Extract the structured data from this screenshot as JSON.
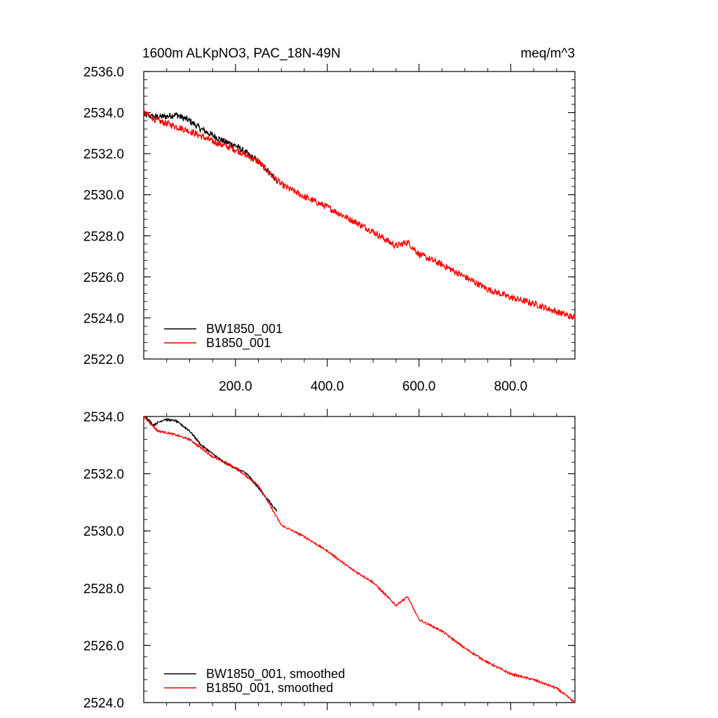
{
  "header": {
    "title": "1600m ALKpNO3, PAC_18N-49N",
    "units": "meq/m^3"
  },
  "colors": {
    "bw": "#000000",
    "b": "#ff0000",
    "axis": "#000000"
  },
  "chart_data": [
    {
      "type": "line",
      "title": "1600m ALKpNO3, PAC_18N-49N",
      "units": "meq/m^3",
      "xlim": [
        0,
        940
      ],
      "ylim": [
        2522.0,
        2536.0
      ],
      "x_ticks": [
        200,
        400,
        600,
        800
      ],
      "x_tick_labels": [
        "200.0",
        "400.0",
        "600.0",
        "800.0"
      ],
      "y_ticks": [
        2522,
        2524,
        2526,
        2528,
        2530,
        2532,
        2534,
        2536
      ],
      "y_tick_labels": [
        "2522.0",
        "2524.0",
        "2526.0",
        "2528.0",
        "2530.0",
        "2532.0",
        "2534.0",
        "2536.0"
      ],
      "legend": {
        "position": "bottom-left"
      },
      "noise": 0.32,
      "series": [
        {
          "name": "BW1850_001",
          "color": "#000000",
          "x": [
            0,
            20,
            45,
            70,
            100,
            125,
            150,
            175,
            200,
            225,
            250,
            270,
            285,
            290
          ],
          "y": [
            2533.9,
            2533.8,
            2533.8,
            2533.9,
            2533.6,
            2533.2,
            2532.9,
            2532.6,
            2532.4,
            2532.0,
            2531.6,
            2531.2,
            2530.8,
            2530.7
          ]
        },
        {
          "name": "B1850_001",
          "color": "#ff0000",
          "x": [
            0,
            30,
            60,
            100,
            150,
            200,
            250,
            300,
            350,
            400,
            450,
            500,
            550,
            575,
            600,
            650,
            700,
            750,
            800,
            850,
            900,
            940
          ],
          "y": [
            2534.0,
            2533.6,
            2533.4,
            2533.1,
            2532.6,
            2532.2,
            2531.6,
            2530.5,
            2529.9,
            2529.4,
            2528.8,
            2528.2,
            2527.5,
            2527.7,
            2527.1,
            2526.6,
            2526.0,
            2525.4,
            2525.0,
            2524.7,
            2524.3,
            2524.0
          ]
        }
      ]
    },
    {
      "type": "line",
      "title": "",
      "xlim": [
        0,
        940
      ],
      "ylim": [
        2524.0,
        2534.0
      ],
      "x_ticks": [
        200,
        400,
        600,
        800
      ],
      "x_tick_labels": [],
      "y_ticks": [
        2524,
        2526,
        2528,
        2530,
        2532,
        2534
      ],
      "y_tick_labels": [
        "2524.0",
        "2526.0",
        "2528.0",
        "2530.0",
        "2532.0",
        "2534.0"
      ],
      "legend": {
        "position": "bottom-left"
      },
      "noise": 0.07,
      "series": [
        {
          "name": "BW1850_001, smoothed",
          "color": "#000000",
          "x": [
            0,
            20,
            45,
            70,
            100,
            125,
            150,
            175,
            200,
            225,
            250,
            270,
            285,
            290
          ],
          "y": [
            2534.1,
            2533.7,
            2533.9,
            2533.85,
            2533.5,
            2533.0,
            2532.7,
            2532.4,
            2532.2,
            2532.0,
            2531.5,
            2531.1,
            2530.8,
            2530.7
          ]
        },
        {
          "name": "B1850_001, smoothed",
          "color": "#ff0000",
          "x": [
            0,
            30,
            60,
            100,
            150,
            200,
            250,
            300,
            350,
            400,
            450,
            500,
            550,
            575,
            600,
            650,
            700,
            750,
            800,
            850,
            900,
            940
          ],
          "y": [
            2534.0,
            2533.5,
            2533.4,
            2533.2,
            2532.6,
            2532.2,
            2531.6,
            2530.2,
            2529.8,
            2529.3,
            2528.7,
            2528.2,
            2527.4,
            2527.7,
            2526.9,
            2526.5,
            2525.9,
            2525.4,
            2525.0,
            2524.8,
            2524.5,
            2524.0
          ]
        }
      ]
    }
  ]
}
